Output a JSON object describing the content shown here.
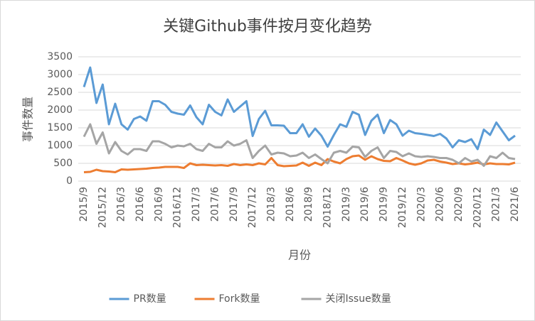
{
  "chart_data": {
    "type": "line",
    "title": "关键Github事件按月变化趋势",
    "x_label": "月份",
    "y_label": "事件数量",
    "categories": [
      "2015/9",
      null,
      null,
      "2015/12",
      null,
      null,
      "2016/3",
      null,
      null,
      "2016/6",
      null,
      null,
      "2016/9",
      null,
      null,
      "2016/12",
      null,
      null,
      "2017/3",
      null,
      null,
      "2017/6",
      null,
      null,
      "2017/9",
      null,
      null,
      "2017/12",
      null,
      null,
      "2018/3",
      null,
      null,
      "2018/6",
      null,
      null,
      "2018/9",
      null,
      null,
      "2018/12",
      null,
      null,
      "2019/3",
      null,
      null,
      "2019/6",
      null,
      null,
      "2019/9",
      null,
      null,
      "2019/12",
      null,
      null,
      "2020/3",
      null,
      null,
      "2020/6",
      null,
      null,
      "2020/9",
      null,
      null,
      "2020/12",
      null,
      null,
      "2021/3",
      null,
      null,
      "2021/6"
    ],
    "series": [
      {
        "name": "PR数量",
        "color": "#5b9bd5",
        "values": [
          2650,
          3200,
          2200,
          2720,
          1600,
          2180,
          1600,
          1450,
          1750,
          1820,
          1700,
          2250,
          2250,
          2150,
          1950,
          1900,
          1870,
          2130,
          1800,
          1600,
          2150,
          1950,
          1850,
          2300,
          1950,
          2100,
          2250,
          1270,
          1750,
          1980,
          1570,
          1570,
          1560,
          1350,
          1350,
          1600,
          1250,
          1480,
          1280,
          970,
          1300,
          1600,
          1530,
          1950,
          1870,
          1300,
          1700,
          1870,
          1350,
          1720,
          1600,
          1280,
          1420,
          1350,
          1330,
          1300,
          1270,
          1330,
          1200,
          950,
          1150,
          1100,
          1180,
          900,
          1450,
          1300,
          1650,
          1400,
          1150,
          1280
        ]
      },
      {
        "name": "Fork数量",
        "color": "#ed7d31",
        "values": [
          250,
          260,
          320,
          280,
          270,
          250,
          330,
          320,
          330,
          340,
          350,
          370,
          380,
          400,
          400,
          400,
          370,
          500,
          450,
          460,
          450,
          440,
          450,
          430,
          480,
          450,
          470,
          450,
          500,
          470,
          650,
          450,
          420,
          430,
          440,
          520,
          430,
          520,
          450,
          620,
          550,
          500,
          620,
          700,
          720,
          600,
          700,
          620,
          570,
          560,
          650,
          580,
          500,
          460,
          500,
          580,
          600,
          550,
          520,
          480,
          500,
          470,
          490,
          520,
          470,
          500,
          480,
          480,
          470,
          520
        ]
      },
      {
        "name": "关闭Issue数量",
        "color": "#a5a5a5",
        "values": [
          1250,
          1600,
          1050,
          1370,
          780,
          1100,
          850,
          750,
          900,
          900,
          850,
          1120,
          1120,
          1050,
          950,
          1000,
          980,
          1050,
          900,
          850,
          1050,
          950,
          950,
          1120,
          1000,
          1050,
          1150,
          650,
          850,
          1000,
          750,
          800,
          780,
          700,
          720,
          800,
          650,
          750,
          620,
          500,
          800,
          850,
          800,
          970,
          950,
          680,
          850,
          950,
          650,
          850,
          820,
          700,
          780,
          700,
          680,
          700,
          680,
          650,
          650,
          600,
          500,
          650,
          550,
          600,
          430,
          700,
          650,
          800,
          650,
          620
        ]
      }
    ],
    "ylim": [
      0,
      3500
    ],
    "yticks": [
      0,
      500,
      1000,
      1500,
      2000,
      2500,
      3000,
      3500
    ],
    "grid": true,
    "legend": "bottom"
  }
}
